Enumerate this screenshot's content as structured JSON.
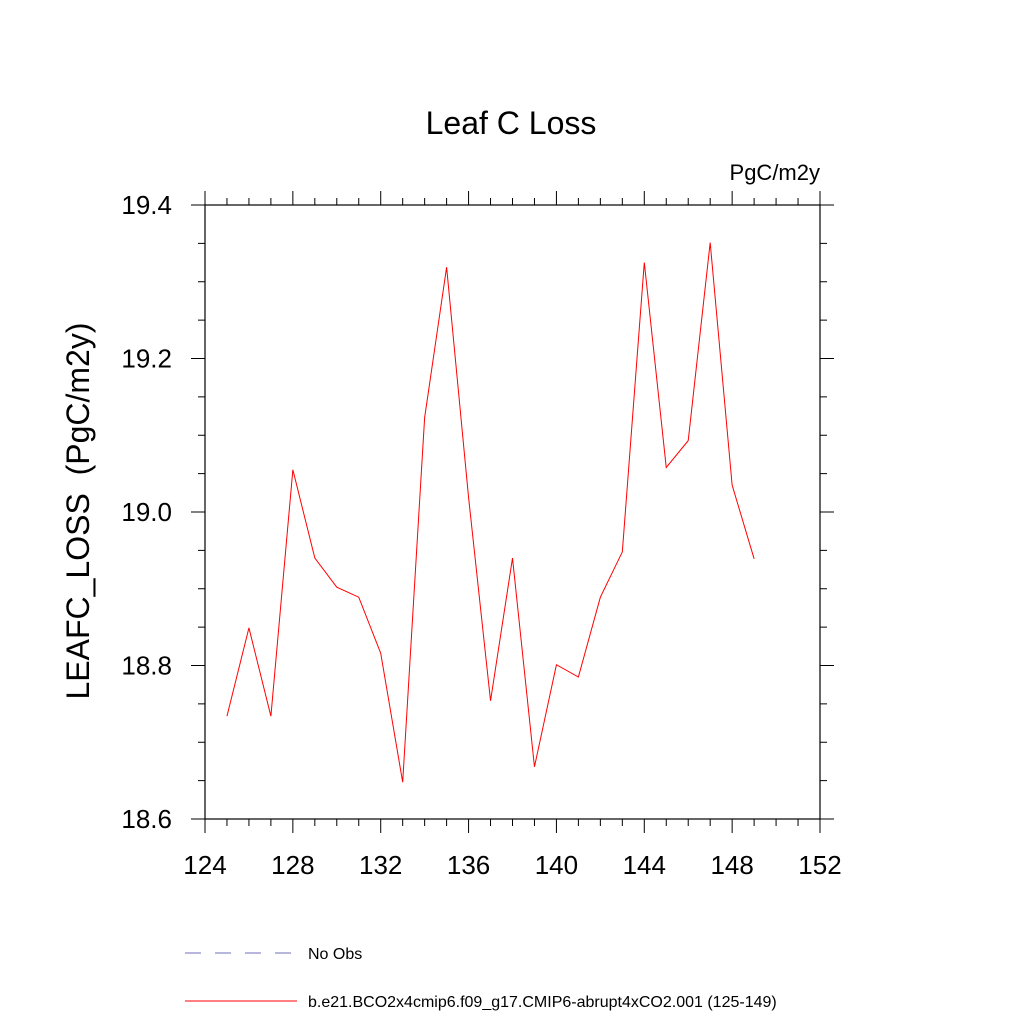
{
  "chart_data": {
    "type": "line",
    "title": "Leaf C Loss",
    "units_label": "PgC/m2y",
    "ylabel": "LEAFC_LOSS  (PgC/m2y)",
    "xlabel": "",
    "xlim": [
      124,
      152
    ],
    "ylim": [
      18.6,
      19.4
    ],
    "x_ticks": [
      124,
      128,
      132,
      136,
      140,
      144,
      148,
      152
    ],
    "x_tick_labels": [
      "124",
      "128",
      "132",
      "136",
      "140",
      "144",
      "148",
      "152"
    ],
    "x_minor_step": 1,
    "y_ticks": [
      18.6,
      18.8,
      19.0,
      19.2,
      19.4
    ],
    "y_tick_labels": [
      "18.6",
      "18.8",
      "19.0",
      "19.2",
      "19.4"
    ],
    "y_minor_step": 0.05,
    "grid": false,
    "series": [
      {
        "name": "b.e21.BCO2x4cmip6.f09_g17.CMIP6-abrupt4xCO2.001 (125-149)",
        "color": "#ff0000",
        "x": [
          125,
          126,
          127,
          128,
          129,
          130,
          131,
          132,
          133,
          134,
          135,
          136,
          137,
          138,
          139,
          140,
          141,
          142,
          143,
          144,
          145,
          146,
          147,
          148,
          149
        ],
        "values": [
          18.734,
          18.849,
          18.734,
          19.055,
          18.94,
          18.902,
          18.889,
          18.816,
          18.648,
          19.123,
          19.319,
          19.019,
          18.754,
          18.94,
          18.668,
          18.801,
          18.785,
          18.889,
          18.948,
          19.325,
          19.058,
          19.093,
          19.351,
          19.035,
          18.939
        ]
      }
    ],
    "legend": [
      {
        "label": "No Obs",
        "color": "#6f6fb8",
        "style": "dashed"
      },
      {
        "label": "b.e21.BCO2x4cmip6.f09_g17.CMIP6-abrupt4xCO2.001 (125-149)",
        "color": "#ff0000",
        "style": "solid"
      }
    ],
    "legend_position": "bottom"
  }
}
